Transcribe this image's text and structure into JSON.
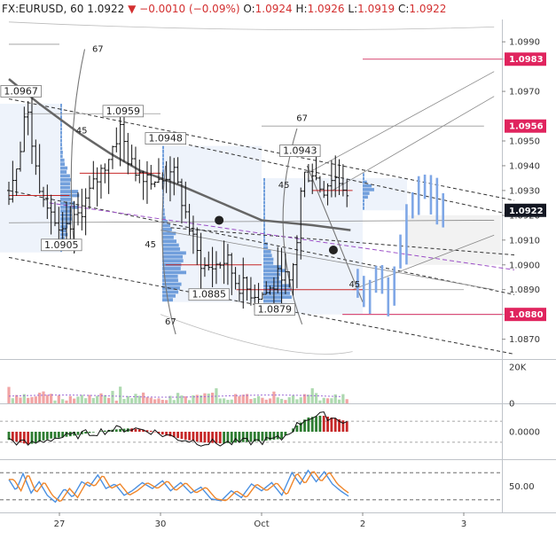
{
  "header": {
    "symbol": "FX:EURUSD, 60",
    "last": "1.0922",
    "arrow": "▼",
    "change": "−0.0010 (−0.09%)",
    "o_label": "O:",
    "o_val": "1.0924",
    "h_label": "H:",
    "h_val": "1.0926",
    "l_label": "L:",
    "l_val": "1.0919",
    "c_label": "C:",
    "c_val": "1.0922"
  },
  "colors": {
    "up": "#2e7d32",
    "down": "#c62828",
    "profile": "#5b8fd6",
    "forecast": "#7fa7e6",
    "badge_red": "#e0245e",
    "badge_dark": "#131722",
    "stoch_blue": "#4a90e2",
    "stoch_orange": "#f0862a"
  },
  "chart_data": [
    {
      "type": "candlestick",
      "symbol": "FX:EURUSD",
      "interval": "60",
      "ylim": [
        1.0862,
        1.0999
      ],
      "y_ticks": [
        "1.0990",
        "1.0970",
        "1.0950",
        "1.0940",
        "1.0930",
        "1.0920",
        "1.0910",
        "1.0900",
        "1.0890",
        "1.0870"
      ],
      "x_ticks": [
        {
          "label": "27",
          "day": 0.5
        },
        {
          "label": "30",
          "day": 1.5
        },
        {
          "label": "Oct",
          "day": 2.5
        },
        {
          "label": "2",
          "day": 3.5
        },
        {
          "label": "3",
          "day": 4.5
        }
      ],
      "price_badges": [
        {
          "value": 1.0983,
          "label": "1.0983",
          "style": "red"
        },
        {
          "value": 1.0956,
          "label": "1.0956",
          "style": "red"
        },
        {
          "value": 1.0922,
          "label": "1.0922",
          "style": "dark"
        },
        {
          "value": 1.088,
          "label": "1.0880",
          "style": "red"
        }
      ],
      "price_notes": [
        {
          "label": "1.0967",
          "day": 0.12,
          "value": 1.0967
        },
        {
          "label": "1.0959",
          "day": 1.13,
          "value": 1.0959
        },
        {
          "label": "1.0948",
          "day": 1.55,
          "value": 1.0948
        },
        {
          "label": "1.0905",
          "day": 0.52,
          "value": 1.0905
        },
        {
          "label": "1.0885",
          "day": 1.98,
          "value": 1.0885
        },
        {
          "label": "1.0879",
          "day": 2.63,
          "value": 1.0879
        },
        {
          "label": "1.0943",
          "day": 2.88,
          "value": 1.0943
        }
      ],
      "angle_labels": [
        {
          "label": "67",
          "day": 0.88,
          "value": 1.0986
        },
        {
          "label": "45",
          "day": 0.72,
          "value": 1.0953
        },
        {
          "label": "45",
          "day": 1.4,
          "value": 1.0907
        },
        {
          "label": "67",
          "day": 1.6,
          "value": 1.0876
        },
        {
          "label": "67",
          "day": 2.9,
          "value": 1.0958
        },
        {
          "label": "45",
          "day": 2.72,
          "value": 1.0931
        },
        {
          "label": "45",
          "day": 3.42,
          "value": 1.0891
        }
      ],
      "ohlc_anchors": [
        [
          0.0,
          1.093
        ],
        [
          0.1,
          1.0945
        ],
        [
          0.17,
          1.0965
        ],
        [
          0.28,
          1.0935
        ],
        [
          0.4,
          1.0925
        ],
        [
          0.5,
          1.091
        ],
        [
          0.62,
          1.0915
        ],
        [
          0.75,
          1.0925
        ],
        [
          0.88,
          1.0935
        ],
        [
          1.0,
          1.0945
        ],
        [
          1.1,
          1.0955
        ],
        [
          1.2,
          1.094
        ],
        [
          1.3,
          1.0938
        ],
        [
          1.4,
          1.0936
        ],
        [
          1.5,
          1.0932
        ],
        [
          1.6,
          1.094
        ],
        [
          1.72,
          1.0925
        ],
        [
          1.85,
          1.0905
        ],
        [
          1.95,
          1.0898
        ],
        [
          2.05,
          1.09
        ],
        [
          2.15,
          1.0902
        ],
        [
          2.25,
          1.0893
        ],
        [
          2.35,
          1.089
        ],
        [
          2.5,
          1.0888
        ],
        [
          2.6,
          1.089
        ],
        [
          2.7,
          1.0898
        ],
        [
          2.78,
          1.089
        ],
        [
          2.85,
          1.091
        ],
        [
          2.9,
          1.0935
        ],
        [
          3.0,
          1.0938
        ],
        [
          3.1,
          1.093
        ],
        [
          3.2,
          1.0936
        ],
        [
          3.3,
          1.0933
        ],
        [
          3.38,
          1.0922
        ]
      ],
      "forecast_anchors": [
        [
          3.45,
          1.0888
        ],
        [
          3.6,
          1.0892
        ],
        [
          3.75,
          1.0888
        ],
        [
          3.85,
          1.0905
        ],
        [
          3.95,
          1.0922
        ],
        [
          4.05,
          1.093
        ],
        [
          4.15,
          1.0925
        ],
        [
          4.3,
          1.0928
        ]
      ],
      "last_value": 1.0922
    },
    {
      "type": "bar",
      "name": "volume",
      "y_ticks": [
        "20K",
        "0"
      ],
      "ylim": [
        0,
        24000
      ]
    },
    {
      "type": "bar",
      "name": "oscillator",
      "y_ticks": [
        "0.0000"
      ],
      "ylim": [
        -1,
        1
      ],
      "anchors": [
        [
          0.0,
          -0.35
        ],
        [
          0.2,
          -0.55
        ],
        [
          0.4,
          -0.3
        ],
        [
          0.6,
          -0.2
        ],
        [
          0.8,
          -0.05
        ],
        [
          1.0,
          0.08
        ],
        [
          1.2,
          0.15
        ],
        [
          1.4,
          0.05
        ],
        [
          1.5,
          -0.1
        ],
        [
          1.7,
          -0.3
        ],
        [
          1.9,
          -0.45
        ],
        [
          2.1,
          -0.5
        ],
        [
          2.3,
          -0.45
        ],
        [
          2.5,
          -0.4
        ],
        [
          2.7,
          -0.3
        ],
        [
          2.8,
          0.1
        ],
        [
          2.95,
          0.6
        ],
        [
          3.1,
          0.7
        ],
        [
          3.25,
          0.55
        ],
        [
          3.38,
          0.4
        ]
      ]
    },
    {
      "type": "line",
      "name": "stochastic",
      "y_ticks": [
        "50.00"
      ],
      "ylim": [
        0,
        100
      ],
      "levels": [
        80,
        20
      ],
      "anchors": [
        [
          0.0,
          65
        ],
        [
          0.07,
          40
        ],
        [
          0.14,
          78
        ],
        [
          0.22,
          35
        ],
        [
          0.3,
          60
        ],
        [
          0.38,
          30
        ],
        [
          0.46,
          15
        ],
        [
          0.55,
          45
        ],
        [
          0.63,
          25
        ],
        [
          0.72,
          60
        ],
        [
          0.8,
          50
        ],
        [
          0.88,
          75
        ],
        [
          0.96,
          45
        ],
        [
          1.05,
          55
        ],
        [
          1.14,
          30
        ],
        [
          1.22,
          40
        ],
        [
          1.32,
          58
        ],
        [
          1.42,
          45
        ],
        [
          1.52,
          62
        ],
        [
          1.6,
          40
        ],
        [
          1.7,
          58
        ],
        [
          1.8,
          35
        ],
        [
          1.9,
          48
        ],
        [
          2.0,
          22
        ],
        [
          2.1,
          18
        ],
        [
          2.2,
          40
        ],
        [
          2.3,
          25
        ],
        [
          2.4,
          55
        ],
        [
          2.5,
          40
        ],
        [
          2.6,
          58
        ],
        [
          2.7,
          30
        ],
        [
          2.8,
          80
        ],
        [
          2.88,
          55
        ],
        [
          2.96,
          85
        ],
        [
          3.04,
          60
        ],
        [
          3.12,
          82
        ],
        [
          3.2,
          55
        ],
        [
          3.28,
          40
        ],
        [
          3.38,
          25
        ]
      ]
    }
  ]
}
